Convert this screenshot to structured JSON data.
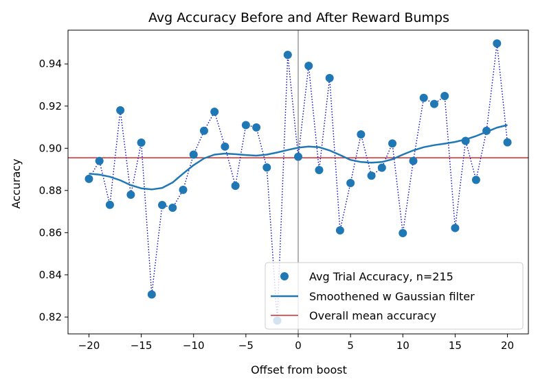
{
  "chart_data": {
    "type": "scatter",
    "title": "Avg Accuracy Before and After Reward Bumps",
    "xlabel": "Offset from boost",
    "ylabel": "Accuracy",
    "xlim": [
      -22,
      22
    ],
    "ylim": [
      0.812,
      0.956
    ],
    "x_ticks": [
      -20,
      -15,
      -10,
      -5,
      0,
      5,
      10,
      15,
      20
    ],
    "y_ticks": [
      0.82,
      0.84,
      0.86,
      0.88,
      0.9,
      0.92,
      0.94
    ],
    "x_tick_labels": [
      "−20",
      "−15",
      "−10",
      "−5",
      "0",
      "5",
      "10",
      "15",
      "20"
    ],
    "y_tick_labels": [
      "0.82",
      "0.84",
      "0.86",
      "0.88",
      "0.90",
      "0.92",
      "0.94"
    ],
    "grid": false,
    "legend_position": "lower-right",
    "mean_accuracy": 0.8955,
    "vertical_line_x": 0,
    "colors": {
      "points": "#1f77b4",
      "dotted_line": "#0000cc",
      "smooth": "#1f77b4",
      "mean_line": "#d62728",
      "vline": "#808080"
    },
    "series": [
      {
        "name": "Avg Trial Accuracy, n=215",
        "kind": "scatter",
        "x": [
          -20,
          -19,
          -18,
          -17,
          -16,
          -15,
          -14,
          -13,
          -12,
          -11,
          -10,
          -9,
          -8,
          -7,
          -6,
          -5,
          -4,
          -3,
          -2,
          -1,
          0,
          1,
          2,
          3,
          4,
          5,
          6,
          7,
          8,
          9,
          10,
          11,
          12,
          13,
          14,
          15,
          16,
          17,
          18,
          19,
          20
        ],
        "y": [
          0.8855,
          0.894,
          0.8732,
          0.918,
          0.878,
          0.9027,
          0.8307,
          0.8731,
          0.8718,
          0.8803,
          0.897,
          0.9083,
          0.9173,
          0.9008,
          0.8822,
          0.911,
          0.9099,
          0.8909,
          0.8183,
          0.9443,
          0.896,
          0.9391,
          0.8897,
          0.9333,
          0.8611,
          0.8835,
          0.9066,
          0.887,
          0.8908,
          0.9023,
          0.8598,
          0.894,
          0.9239,
          0.921,
          0.9248,
          0.8622,
          0.9035,
          0.885,
          0.9083,
          0.9497,
          0.9028
        ]
      },
      {
        "name": "Smoothened w Gaussian filter",
        "kind": "line",
        "x": [
          -20,
          -19,
          -18,
          -17,
          -16,
          -15,
          -14,
          -13,
          -12,
          -11,
          -10,
          -9,
          -8,
          -7,
          -6,
          -5,
          -4,
          -3,
          -2,
          -1,
          0,
          1,
          2,
          3,
          4,
          5,
          6,
          7,
          8,
          9,
          10,
          11,
          12,
          13,
          14,
          15,
          16,
          17,
          18,
          19,
          20
        ],
        "y": [
          0.888,
          0.8875,
          0.8865,
          0.8848,
          0.8825,
          0.881,
          0.8805,
          0.8812,
          0.8838,
          0.888,
          0.892,
          0.8952,
          0.897,
          0.8975,
          0.8972,
          0.8968,
          0.8965,
          0.897,
          0.898,
          0.8992,
          0.9003,
          0.9008,
          0.9005,
          0.899,
          0.8968,
          0.8945,
          0.8935,
          0.8932,
          0.8935,
          0.8948,
          0.897,
          0.899,
          0.9005,
          0.9015,
          0.9022,
          0.903,
          0.9042,
          0.9058,
          0.9078,
          0.9098,
          0.911
        ]
      },
      {
        "name": "Overall mean accuracy",
        "kind": "hline"
      }
    ]
  }
}
